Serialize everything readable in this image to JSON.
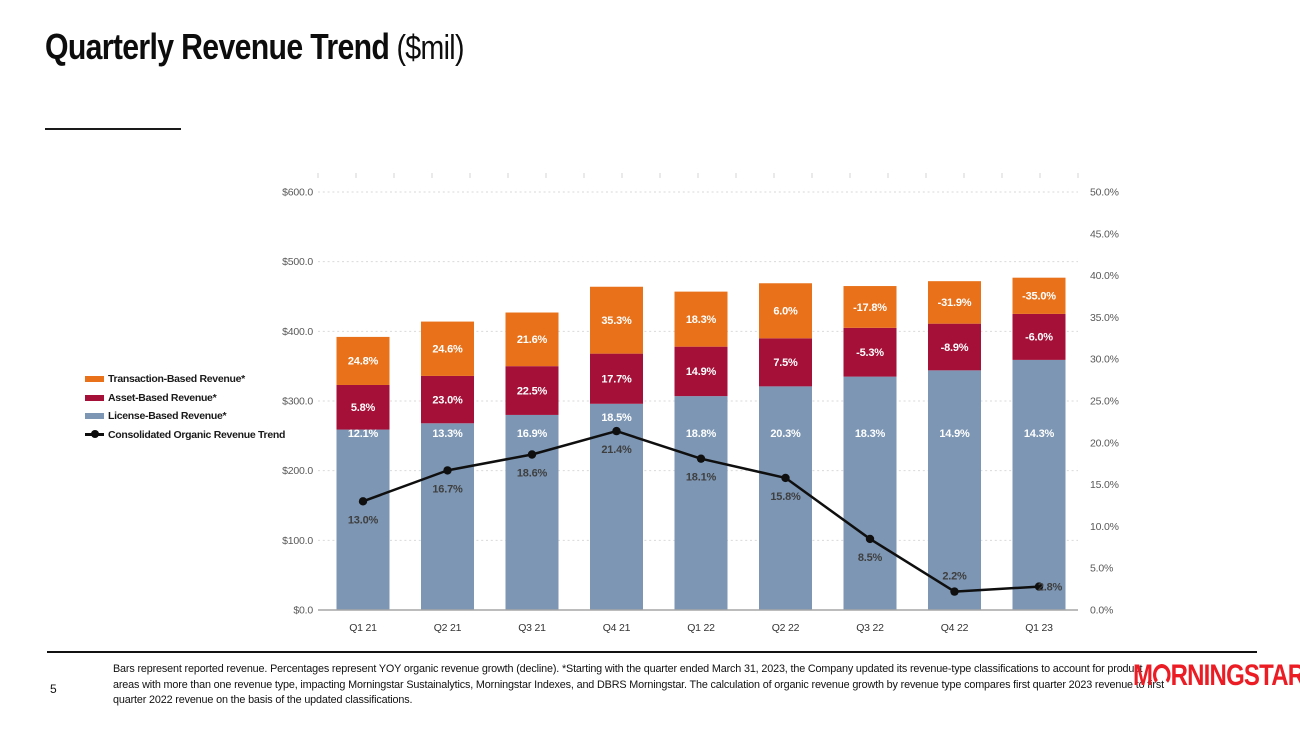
{
  "page": {
    "title_bold": "Quarterly Revenue Trend",
    "title_suffix": " ($mil)",
    "page_number": "5"
  },
  "legend": {
    "items": [
      {
        "label": "Transaction-Based Revenue*",
        "marker": "swatch",
        "color": "#E8711A"
      },
      {
        "label": "Asset-Based Revenue*",
        "marker": "swatch",
        "color": "#A41038"
      },
      {
        "label": "License-Based Revenue*",
        "marker": "swatch",
        "color": "#7C96B4"
      },
      {
        "label": "Consolidated Organic Revenue Trend",
        "marker": "line-dot",
        "color": "#0D0D0D"
      }
    ]
  },
  "chart_data": {
    "type": "bar",
    "subtype": "stacked-bars-with-line-overlay",
    "title": "Quarterly Revenue Trend ($mil)",
    "categories": [
      "Q1 21",
      "Q2 21",
      "Q3 21",
      "Q4 21",
      "Q1 22",
      "Q2 22",
      "Q3 22",
      "Q4 22",
      "Q1 23"
    ],
    "series": [
      {
        "name": "License-Based Revenue*",
        "type": "bar",
        "color": "#7C96B4",
        "values_mil_est": [
          259,
          268,
          280,
          296,
          307,
          321,
          335,
          344,
          359
        ],
        "growth_labels": [
          "12.1%",
          "13.3%",
          "16.9%",
          "18.5%",
          "18.8%",
          "20.3%",
          "18.3%",
          "14.9%",
          "14.3%"
        ]
      },
      {
        "name": "Asset-Based Revenue*",
        "type": "bar",
        "color": "#A41038",
        "values_mil_est": [
          64,
          68,
          70,
          72,
          71,
          69,
          70,
          67,
          66
        ],
        "growth_labels": [
          "5.8%",
          "23.0%",
          "22.5%",
          "17.7%",
          "14.9%",
          "7.5%",
          "-5.3%",
          "-8.9%",
          "-6.0%"
        ]
      },
      {
        "name": "Transaction-Based Revenue*",
        "type": "bar",
        "color": "#E8711A",
        "values_mil_est": [
          69,
          78,
          77,
          96,
          79,
          79,
          60,
          61,
          52
        ],
        "growth_labels": [
          "24.8%",
          "24.6%",
          "21.6%",
          "35.3%",
          "18.3%",
          "6.0%",
          "-17.8%",
          "-31.9%",
          "-35.0%"
        ]
      },
      {
        "name": "Consolidated Organic Revenue Trend",
        "type": "line",
        "color": "#0F0F0F",
        "values_pct": [
          13.0,
          16.7,
          18.6,
          21.4,
          18.1,
          15.8,
          8.5,
          2.2,
          2.8
        ],
        "labels": [
          "13.0%",
          "16.7%",
          "18.6%",
          "21.4%",
          "18.1%",
          "15.8%",
          "8.5%",
          "2.2%",
          "2.8%"
        ],
        "label_positions": [
          "below",
          "below",
          "below",
          "below",
          "below",
          "below",
          "below",
          "above",
          "right"
        ]
      }
    ],
    "left_axis": {
      "unit": "$mil",
      "min": 0,
      "max": 600,
      "step": 100,
      "tick_labels": [
        "$0.0",
        "$100.0",
        "$200.0",
        "$300.0",
        "$400.0",
        "$500.0",
        "$600.0"
      ]
    },
    "right_axis": {
      "unit": "%",
      "min": 0,
      "max": 50,
      "step": 5,
      "tick_labels": [
        "0.0%",
        "5.0%",
        "10.0%",
        "15.0%",
        "20.0%",
        "25.0%",
        "30.0%",
        "35.0%",
        "40.0%",
        "45.0%",
        "50.0%"
      ]
    },
    "grid": "dotted-horizontal",
    "legend_position": "left-middle"
  },
  "footer": {
    "footnote_lines": [
      "Bars represent reported revenue. Percentages represent YOY organic revenue growth (decline). *Starting with the quarter ended March 31, 2023, the Company updated its revenue-type classifications to account for product",
      "areas with more than one revenue type, impacting Morningstar Sustainalytics, Morningstar Indexes, and DBRS Morningstar. The calculation of organic revenue growth by revenue type compares first quarter 2023 revenue to first",
      "quarter 2022 revenue on the basis of the updated classifications."
    ],
    "logo": {
      "prefix": "M",
      "suffix": "RNINGSTAR",
      "registered": "®",
      "color": "#EC1C24"
    }
  },
  "colors": {
    "transaction_orange": "#E8711A",
    "asset_maroon": "#A41038",
    "license_blue": "#7C96B4",
    "trend_line": "#0F0F0F",
    "axis_text": "#595959",
    "gridline": "#D9D9D9",
    "axis_line": "#A6A6A6",
    "trend_label": "#3F3F3F",
    "logo_red": "#EC1C24"
  }
}
